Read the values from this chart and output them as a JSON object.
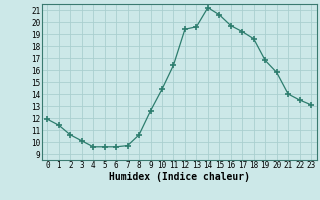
{
  "x": [
    0,
    1,
    2,
    3,
    4,
    5,
    6,
    7,
    8,
    9,
    10,
    11,
    12,
    13,
    14,
    15,
    16,
    17,
    18,
    19,
    20,
    21,
    22,
    23
  ],
  "y": [
    11.9,
    11.4,
    10.6,
    10.1,
    9.6,
    9.6,
    9.6,
    9.7,
    10.6,
    12.6,
    14.4,
    16.4,
    19.4,
    19.6,
    21.2,
    20.6,
    19.7,
    19.2,
    18.6,
    16.8,
    15.8,
    14.0,
    13.5,
    13.1
  ],
  "xlabel": "Humidex (Indice chaleur)",
  "xlim": [
    -0.5,
    23.5
  ],
  "ylim": [
    8.5,
    21.5
  ],
  "yticks": [
    9,
    10,
    11,
    12,
    13,
    14,
    15,
    16,
    17,
    18,
    19,
    20,
    21
  ],
  "xticks": [
    0,
    1,
    2,
    3,
    4,
    5,
    6,
    7,
    8,
    9,
    10,
    11,
    12,
    13,
    14,
    15,
    16,
    17,
    18,
    19,
    20,
    21,
    22,
    23
  ],
  "line_color": "#2d7d6e",
  "marker": "+",
  "marker_size": 4.0,
  "bg_color": "#cce8e8",
  "grid_color": "#aacfcf",
  "xlabel_fontsize": 7,
  "tick_fontsize": 5.5
}
